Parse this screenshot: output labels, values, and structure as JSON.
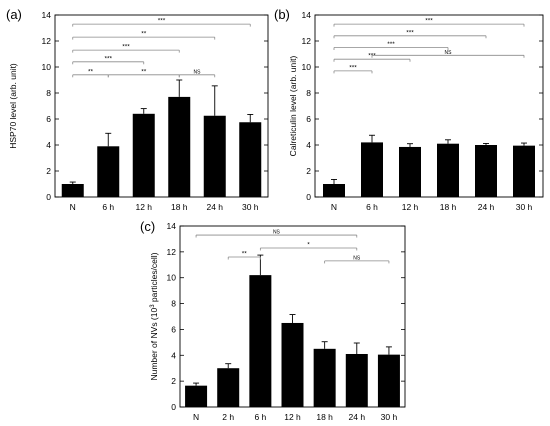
{
  "chart_data": [
    {
      "panel": "(a)",
      "type": "bar",
      "ylabel": "HSP70 level (arb. unit)",
      "categories": [
        "N",
        "6 h",
        "12 h",
        "18 h",
        "24 h",
        "30 h"
      ],
      "values": [
        1.0,
        3.9,
        6.4,
        7.7,
        6.25,
        5.75
      ],
      "errors": [
        0.15,
        1.0,
        0.4,
        1.3,
        2.3,
        0.6
      ],
      "ylim": [
        0,
        14
      ],
      "yticks": [
        "0",
        "2",
        "4",
        "6",
        "8",
        "10",
        "12",
        "14"
      ],
      "significance": [
        {
          "from": 0,
          "to": 5,
          "y": 13.3,
          "label": "***"
        },
        {
          "from": 0,
          "to": 4,
          "y": 12.3,
          "label": "**"
        },
        {
          "from": 0,
          "to": 3,
          "y": 11.3,
          "label": "***"
        },
        {
          "from": 0,
          "to": 2,
          "y": 10.4,
          "label": "***"
        },
        {
          "from": 0,
          "to": 1,
          "y": 9.4,
          "label": "**"
        },
        {
          "from": 1,
          "to": 3,
          "y": 9.4,
          "label": "**"
        },
        {
          "from": 3,
          "to": 4,
          "y": 9.4,
          "label": "NS"
        }
      ]
    },
    {
      "panel": "(b)",
      "type": "bar",
      "ylabel": "Calreticulin level (arb. unit)",
      "categories": [
        "N",
        "6 h",
        "12 h",
        "18 h",
        "24 h",
        "30 h"
      ],
      "values": [
        1.0,
        4.2,
        3.85,
        4.1,
        4.0,
        3.95
      ],
      "errors": [
        0.35,
        0.55,
        0.25,
        0.3,
        0.12,
        0.2
      ],
      "ylim": [
        0,
        14
      ],
      "yticks": [
        "0",
        "2",
        "4",
        "6",
        "8",
        "10",
        "12",
        "14"
      ],
      "significance": [
        {
          "from": 0,
          "to": 5,
          "y": 13.3,
          "label": "***"
        },
        {
          "from": 0,
          "to": 4,
          "y": 12.4,
          "label": "***"
        },
        {
          "from": 0,
          "to": 3,
          "y": 11.5,
          "label": "***"
        },
        {
          "from": 0,
          "to": 2,
          "y": 10.6,
          "label": "***"
        },
        {
          "from": 0,
          "to": 1,
          "y": 9.7,
          "label": "***"
        },
        {
          "from": 1,
          "to": 5,
          "y": 10.9,
          "label": "NS"
        }
      ]
    },
    {
      "panel": "(c)",
      "type": "bar",
      "ylabel": "Number of NVs (10",
      "ylabel_sup": "3",
      "ylabel_end": " particles/cell)",
      "categories": [
        "N",
        "2 h",
        "6 h",
        "12 h",
        "18 h",
        "24 h",
        "30 h"
      ],
      "values": [
        1.65,
        3.0,
        10.2,
        6.5,
        4.5,
        4.1,
        4.05
      ],
      "errors": [
        0.2,
        0.35,
        1.55,
        0.65,
        0.55,
        0.85,
        0.6
      ],
      "ylim": [
        0,
        14
      ],
      "yticks": [
        "0",
        "2",
        "4",
        "6",
        "8",
        "10",
        "12",
        "14"
      ],
      "significance": [
        {
          "from": 0,
          "to": 5,
          "y": 13.3,
          "label": "NS"
        },
        {
          "from": 2,
          "to": 5,
          "y": 12.3,
          "label": "*"
        },
        {
          "from": 1,
          "to": 2,
          "y": 11.6,
          "label": "**"
        },
        {
          "from": 4,
          "to": 6,
          "y": 11.3,
          "label": "NS"
        }
      ]
    }
  ]
}
